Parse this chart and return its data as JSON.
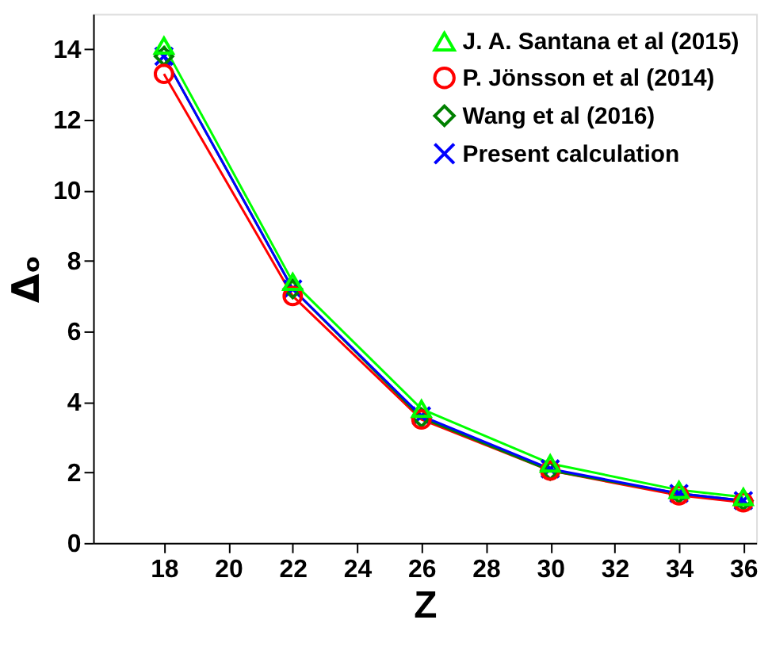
{
  "chart_data": {
    "type": "line",
    "xlabel": "Z",
    "ylabel": "Δₒ",
    "x": [
      18,
      22,
      26,
      30,
      34,
      36
    ],
    "series": [
      {
        "name": "J. A. Santana et al (2015)",
        "color": "#00ff00",
        "marker": "triangle",
        "values": [
          14.1,
          7.4,
          3.8,
          2.25,
          1.5,
          1.3
        ]
      },
      {
        "name": "P. Jönsson et al (2014)",
        "color": "#ff0000",
        "marker": "circle",
        "values": [
          13.3,
          7.0,
          3.5,
          2.05,
          1.35,
          1.15
        ]
      },
      {
        "name": "Wang et al (2016)",
        "color": "#008000",
        "marker": "diamond",
        "values": [
          13.8,
          7.2,
          3.55,
          2.05,
          1.4,
          1.2
        ]
      },
      {
        "name": "Present calculation",
        "color": "#0000ff",
        "marker": "cross",
        "values": [
          13.8,
          7.2,
          3.6,
          2.1,
          1.4,
          1.2
        ]
      }
    ],
    "xlim": [
      15.8,
      36.4
    ],
    "ylim": [
      0,
      15
    ],
    "xticks": [
      18,
      20,
      22,
      24,
      26,
      28,
      30,
      32,
      34,
      36
    ],
    "yticks": [
      0,
      2,
      4,
      6,
      8,
      10,
      12,
      14
    ],
    "grid": false,
    "legend": "top right",
    "line_style": "solid"
  }
}
